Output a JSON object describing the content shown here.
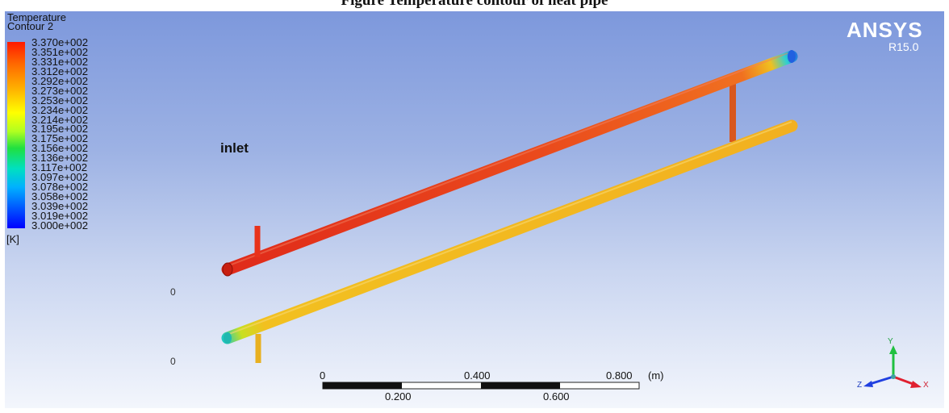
{
  "caption": "Figure Temperature contour of heat pipe",
  "legend": {
    "title_line1": "Temperature",
    "title_line2": "Contour 2",
    "ticks": [
      "3.370e+002",
      "3.351e+002",
      "3.331e+002",
      "3.312e+002",
      "3.292e+002",
      "3.273e+002",
      "3.253e+002",
      "3.234e+002",
      "3.214e+002",
      "3.195e+002",
      "3.175e+002",
      "3.156e+002",
      "3.136e+002",
      "3.117e+002",
      "3.097e+002",
      "3.078e+002",
      "3.058e+002",
      "3.039e+002",
      "3.019e+002",
      "3.000e+002"
    ],
    "unit": "[K]"
  },
  "logo": {
    "name": "ANSYS",
    "version": "R15.0"
  },
  "labels": {
    "inlet": "inlet",
    "zero_a": "0",
    "zero_b": "0"
  },
  "scale_bar": {
    "t0": "0",
    "t1": "0.200",
    "t2": "0.400",
    "t3": "0.600",
    "t4": "0.800",
    "unit": "(m)"
  },
  "axes": {
    "x": "X",
    "y": "Y",
    "z": "Z"
  },
  "colors": {
    "hot": "#e8361c",
    "warm": "#f2b020",
    "cool": "#20c0c8"
  }
}
